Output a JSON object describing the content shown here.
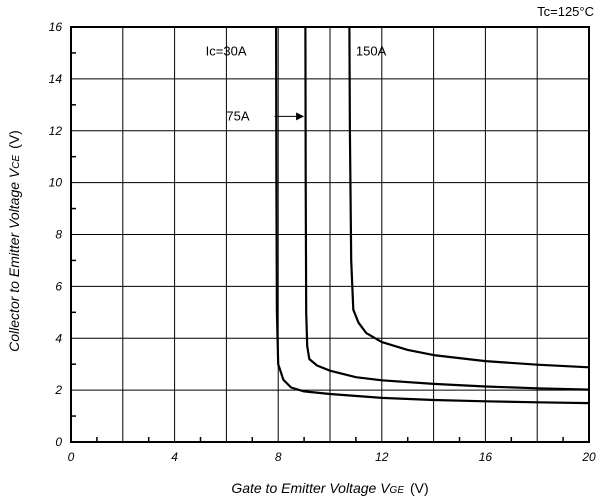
{
  "chart_data": {
    "type": "line",
    "title": "",
    "condition_label": "Tc=125°C",
    "xlabel": {
      "main": "Gate to Emitter Voltage V",
      "sub": "GE",
      "unit": "(V)"
    },
    "ylabel": {
      "main": "Collector to Emitter Voltage V",
      "sub": "CE",
      "unit": "(V)"
    },
    "xlim": [
      0,
      20
    ],
    "ylim": [
      0,
      16
    ],
    "x_ticks": [
      "0",
      "4",
      "8",
      "12",
      "16",
      "20"
    ],
    "y_ticks": [
      "0",
      "2",
      "4",
      "6",
      "8",
      "10",
      "12",
      "14",
      "16"
    ],
    "grid": true,
    "series": [
      {
        "name": "Ic=30A",
        "x": [
          7.92,
          7.93,
          7.95,
          8.0,
          8.2,
          8.5,
          9.0,
          10.0,
          12.0,
          14.0,
          16.0,
          18.0,
          20.0
        ],
        "y": [
          16.0,
          10.0,
          5.0,
          3.0,
          2.4,
          2.1,
          1.95,
          1.85,
          1.7,
          1.62,
          1.57,
          1.53,
          1.5
        ]
      },
      {
        "name": "75A",
        "x": [
          9.05,
          9.06,
          9.08,
          9.12,
          9.2,
          9.5,
          10.0,
          11.0,
          12.0,
          14.0,
          16.0,
          18.0,
          20.0
        ],
        "y": [
          16.0,
          10.0,
          5.0,
          3.7,
          3.2,
          2.95,
          2.75,
          2.5,
          2.38,
          2.24,
          2.14,
          2.07,
          2.02
        ]
      },
      {
        "name": "150A",
        "x": [
          10.75,
          10.77,
          10.82,
          10.9,
          11.1,
          11.4,
          12.0,
          13.0,
          14.0,
          16.0,
          18.0,
          20.0
        ],
        "y": [
          16.0,
          12.0,
          7.0,
          5.1,
          4.6,
          4.2,
          3.85,
          3.55,
          3.35,
          3.12,
          2.98,
          2.88
        ]
      }
    ],
    "annotations": [
      {
        "text": "Ic=30A",
        "x": 5.2,
        "y": 14.9
      },
      {
        "text": "150A",
        "x": 11.0,
        "y": 14.9
      },
      {
        "text": "75A",
        "x": 6.0,
        "y": 12.4
      }
    ]
  }
}
